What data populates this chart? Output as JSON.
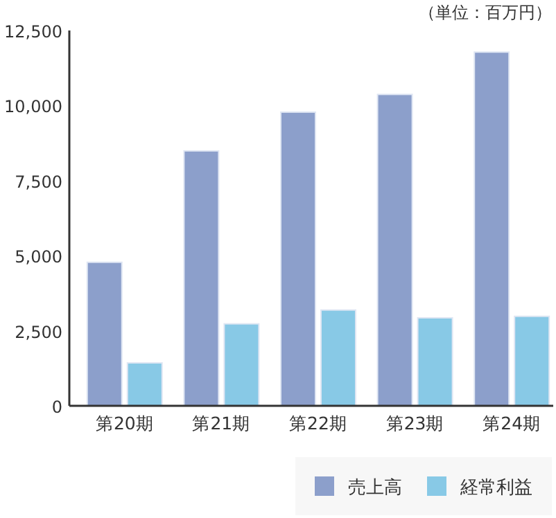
{
  "chart_data": {
    "type": "bar",
    "annotations": [
      "（単位：百万円）"
    ],
    "categories": [
      "第20期",
      "第21期",
      "第22期",
      "第23期",
      "第24期"
    ],
    "series": [
      {
        "name": "売上高",
        "color": "#8c9fcb",
        "values": [
          4780,
          8490,
          9780,
          10370,
          11780
        ]
      },
      {
        "name": "経常利益",
        "color": "#88c9e6",
        "values": [
          1430,
          2730,
          3190,
          2930,
          2980
        ]
      }
    ],
    "ylim": [
      0,
      12500
    ],
    "yticks": [
      {
        "value": 0,
        "label": "0"
      },
      {
        "value": 2500,
        "label": "2,500"
      },
      {
        "value": 5000,
        "label": "5,000"
      },
      {
        "value": 7500,
        "label": "7,500"
      },
      {
        "value": 10000,
        "label": "10,000"
      },
      {
        "value": 12500,
        "label": "12,500"
      }
    ],
    "grid": false,
    "legend": "bottom right"
  }
}
